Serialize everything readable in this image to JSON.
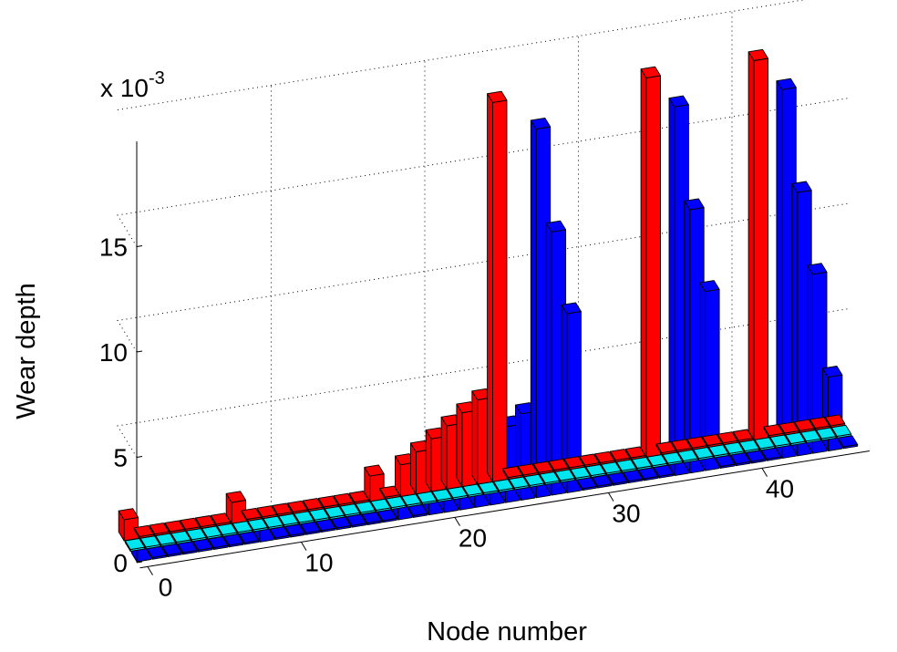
{
  "chart_data": {
    "type": "bar",
    "title": "",
    "xlabel": "Node number",
    "ylabel": "Wear depth",
    "exponent": "x 10",
    "exponent_power": "-3",
    "x_ticks": [
      "0",
      "10",
      "20",
      "30",
      "40"
    ],
    "z_ticks": [
      "0",
      "5",
      "10",
      "15"
    ],
    "zlim": [
      0,
      20
    ],
    "grid": true,
    "nodes": [
      0,
      1,
      2,
      3,
      4,
      5,
      6,
      7,
      8,
      9,
      10,
      11,
      12,
      13,
      14,
      15,
      16,
      17,
      18,
      19,
      20,
      21,
      22,
      23,
      24,
      25,
      26,
      27,
      28,
      29,
      30,
      31,
      32,
      33,
      34,
      35,
      36,
      37,
      38,
      39,
      40,
      41,
      42,
      43,
      44,
      45,
      46
    ],
    "series": [
      {
        "color": "#ff0000",
        "values": [
          1.0,
          0,
          0,
          0,
          0,
          0,
          0,
          1.0,
          0,
          0,
          0,
          0,
          0,
          0,
          0,
          0,
          1.2,
          0,
          1.5,
          2.0,
          2.5,
          3.0,
          3.5,
          4.0,
          18.0,
          0,
          0,
          0,
          0,
          0,
          0,
          0,
          0,
          0,
          18.0,
          0,
          0,
          0,
          0,
          0,
          0,
          18.0,
          0,
          0,
          0,
          0,
          0
        ]
      },
      {
        "color": "#00e5ee",
        "values": [
          0,
          0,
          0,
          0,
          0,
          0,
          0,
          0,
          0,
          0,
          0,
          0,
          0,
          0,
          0,
          0,
          0,
          0,
          0,
          0,
          0,
          0,
          0,
          0,
          0,
          0,
          0,
          0,
          0,
          0,
          0,
          0,
          0,
          0,
          0,
          0,
          0,
          0,
          0,
          0,
          0,
          0,
          0,
          0,
          0,
          0,
          0
        ]
      },
      {
        "color": "#0000ff",
        "values": [
          1.0,
          0,
          0,
          0,
          0,
          0,
          0,
          0,
          1.0,
          0,
          0,
          0,
          0,
          0,
          0,
          0,
          0,
          1.0,
          0,
          1.1,
          1.6,
          2.1,
          2.6,
          3.1,
          3.6,
          4.1,
          17.5,
          12.5,
          8.5,
          0,
          0,
          0,
          0,
          0,
          0,
          17.5,
          12.5,
          8.5,
          0,
          0,
          0,
          0,
          17.5,
          12.5,
          8.5,
          3.5,
          0
        ]
      }
    ]
  }
}
